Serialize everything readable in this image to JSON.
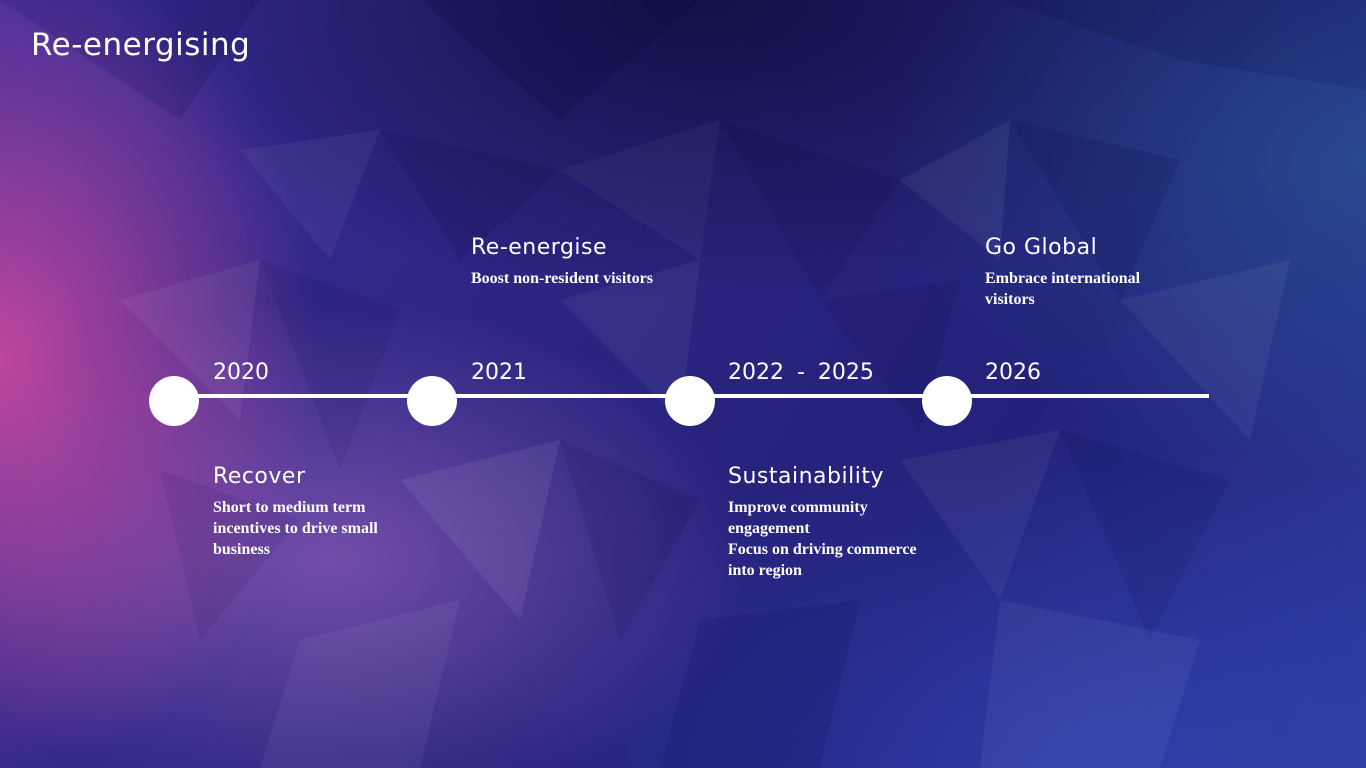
{
  "slide": {
    "title": "Re-energising"
  },
  "timeline": {
    "years": [
      "2020",
      "2021",
      "2022 - 2025",
      "2026"
    ],
    "phases": [
      {
        "title": "Recover",
        "description": "Short to medium term\nincentives to drive small\nbusiness"
      },
      {
        "title": "Re-energise",
        "description": "Boost non-resident visitors"
      },
      {
        "title": "Sustainability",
        "description": "Improve community\nengagement\nFocus on driving commerce\ninto region"
      },
      {
        "title": "Go Global",
        "description": "Embrace international\nvisitors"
      }
    ]
  },
  "colors": {
    "text": "#ffffff",
    "line": "#ffffff",
    "background_deep": "#23227a",
    "background_accent_pink": "#d64aa0",
    "background_accent_teal": "#286096"
  }
}
